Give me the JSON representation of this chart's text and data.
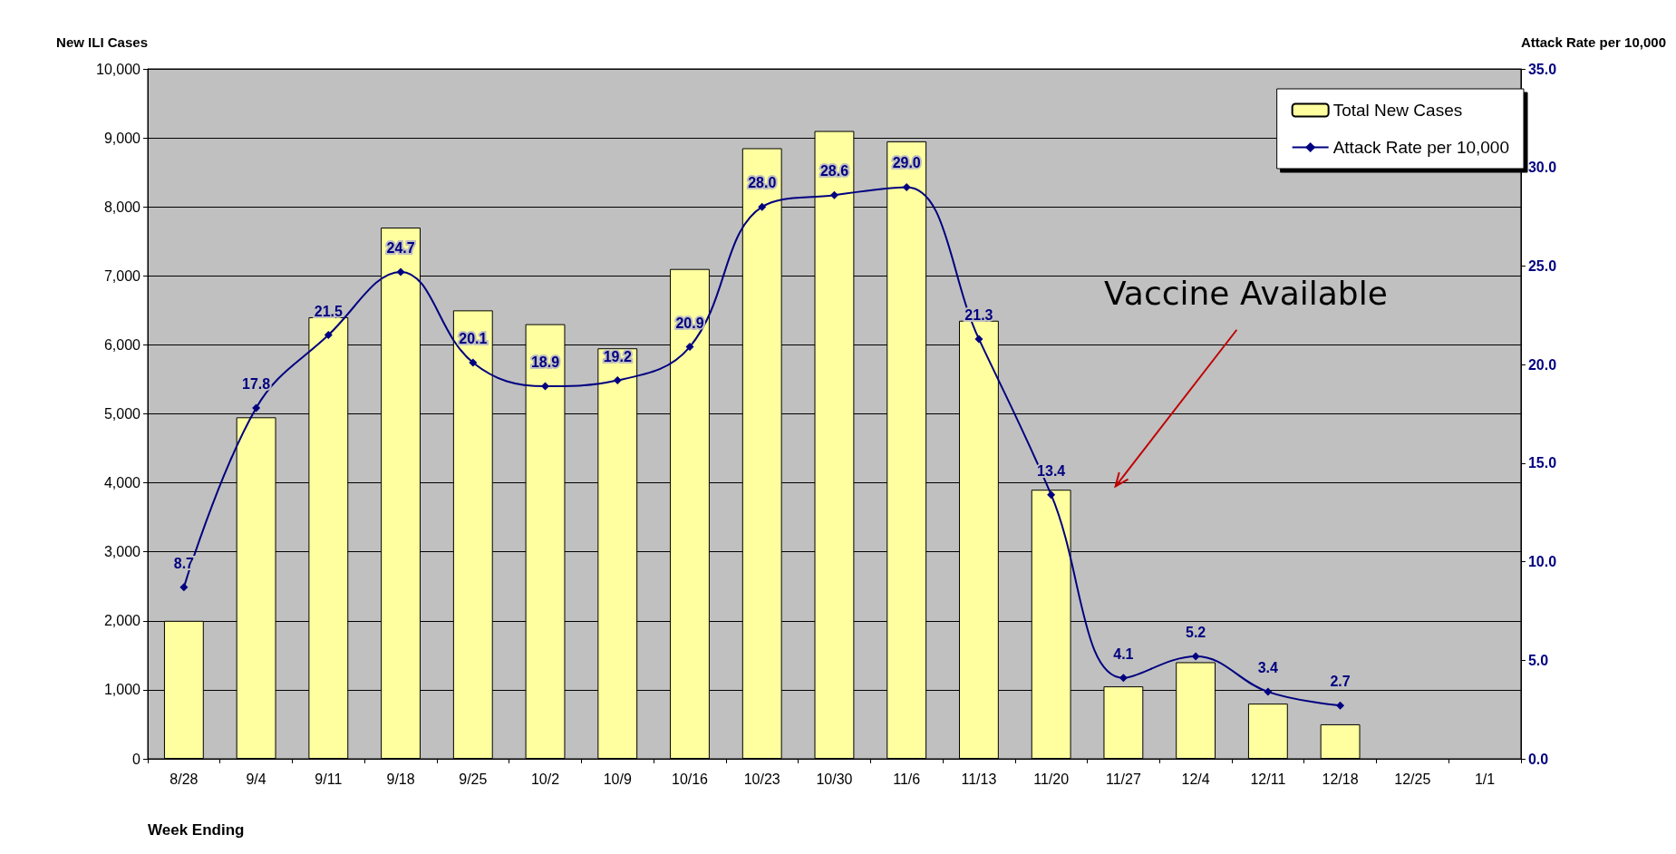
{
  "chart_data": {
    "type": "bar",
    "ylabel": "New ILI Cases",
    "y2label": "Attack Rate per 10,000",
    "xlabel": "Week Ending",
    "categories": [
      "8/28",
      "9/4",
      "9/11",
      "9/18",
      "9/25",
      "10/2",
      "10/9",
      "10/16",
      "10/23",
      "10/30",
      "11/6",
      "11/13",
      "11/20",
      "11/27",
      "12/4",
      "12/11",
      "12/18",
      "12/25",
      "1/1"
    ],
    "series": [
      {
        "name": "Total New Cases",
        "color": "#ffffa0",
        "values": [
          2000,
          4950,
          6400,
          7700,
          6500,
          6300,
          5950,
          7100,
          8850,
          9100,
          8950,
          6350,
          3900,
          1050,
          1400,
          800,
          500,
          null,
          null
        ]
      },
      {
        "name": "Attack Rate per 10,000",
        "type": "line",
        "axis": "y2",
        "color": "#000080",
        "marker": "diamond",
        "values": [
          8.7,
          17.8,
          21.5,
          24.7,
          20.1,
          18.9,
          19.2,
          20.9,
          28.0,
          28.6,
          29.0,
          21.3,
          13.4,
          4.1,
          5.2,
          3.4,
          2.7,
          null,
          null
        ],
        "value_labels": [
          "8.7",
          "17.8",
          "21.5",
          "24.7",
          "20.1",
          "18.9",
          "19.2",
          "20.9",
          "28.0",
          "28.6",
          "29.0",
          "21.3",
          "13.4",
          "4.1",
          "5.2",
          "3.4",
          "2.7",
          null,
          null
        ]
      }
    ],
    "ylim": [
      0,
      10000
    ],
    "yticks": [
      0,
      {
        "value": 1000,
        "label": "1,000"
      },
      {
        "value": 2000,
        "label": "2,000"
      },
      {
        "value": 3000,
        "label": "3,000"
      },
      {
        "value": 4000,
        "label": "4,000"
      },
      {
        "value": 5000,
        "label": "5,000"
      },
      {
        "value": 6000,
        "label": "6,000"
      },
      {
        "value": 7000,
        "label": "7,000"
      },
      {
        "value": 8000,
        "label": "8,000"
      },
      {
        "value": 9000,
        "label": "9,000"
      },
      {
        "value": 10000,
        "label": "10,000"
      }
    ],
    "y2lim": [
      0,
      35
    ],
    "y2ticks": [
      {
        "value": 0,
        "label": "0.0"
      },
      {
        "value": 5,
        "label": "5.0"
      },
      {
        "value": 10,
        "label": "10.0"
      },
      {
        "value": 15,
        "label": "15.0"
      },
      {
        "value": 20,
        "label": "20.0"
      },
      {
        "value": 25,
        "label": "25.0"
      },
      {
        "value": 30,
        "label": "30.0"
      },
      {
        "value": 35,
        "label": "35.0"
      }
    ],
    "grid": "y",
    "legend": "top right",
    "annotations": [
      "Vaccine Available"
    ]
  }
}
